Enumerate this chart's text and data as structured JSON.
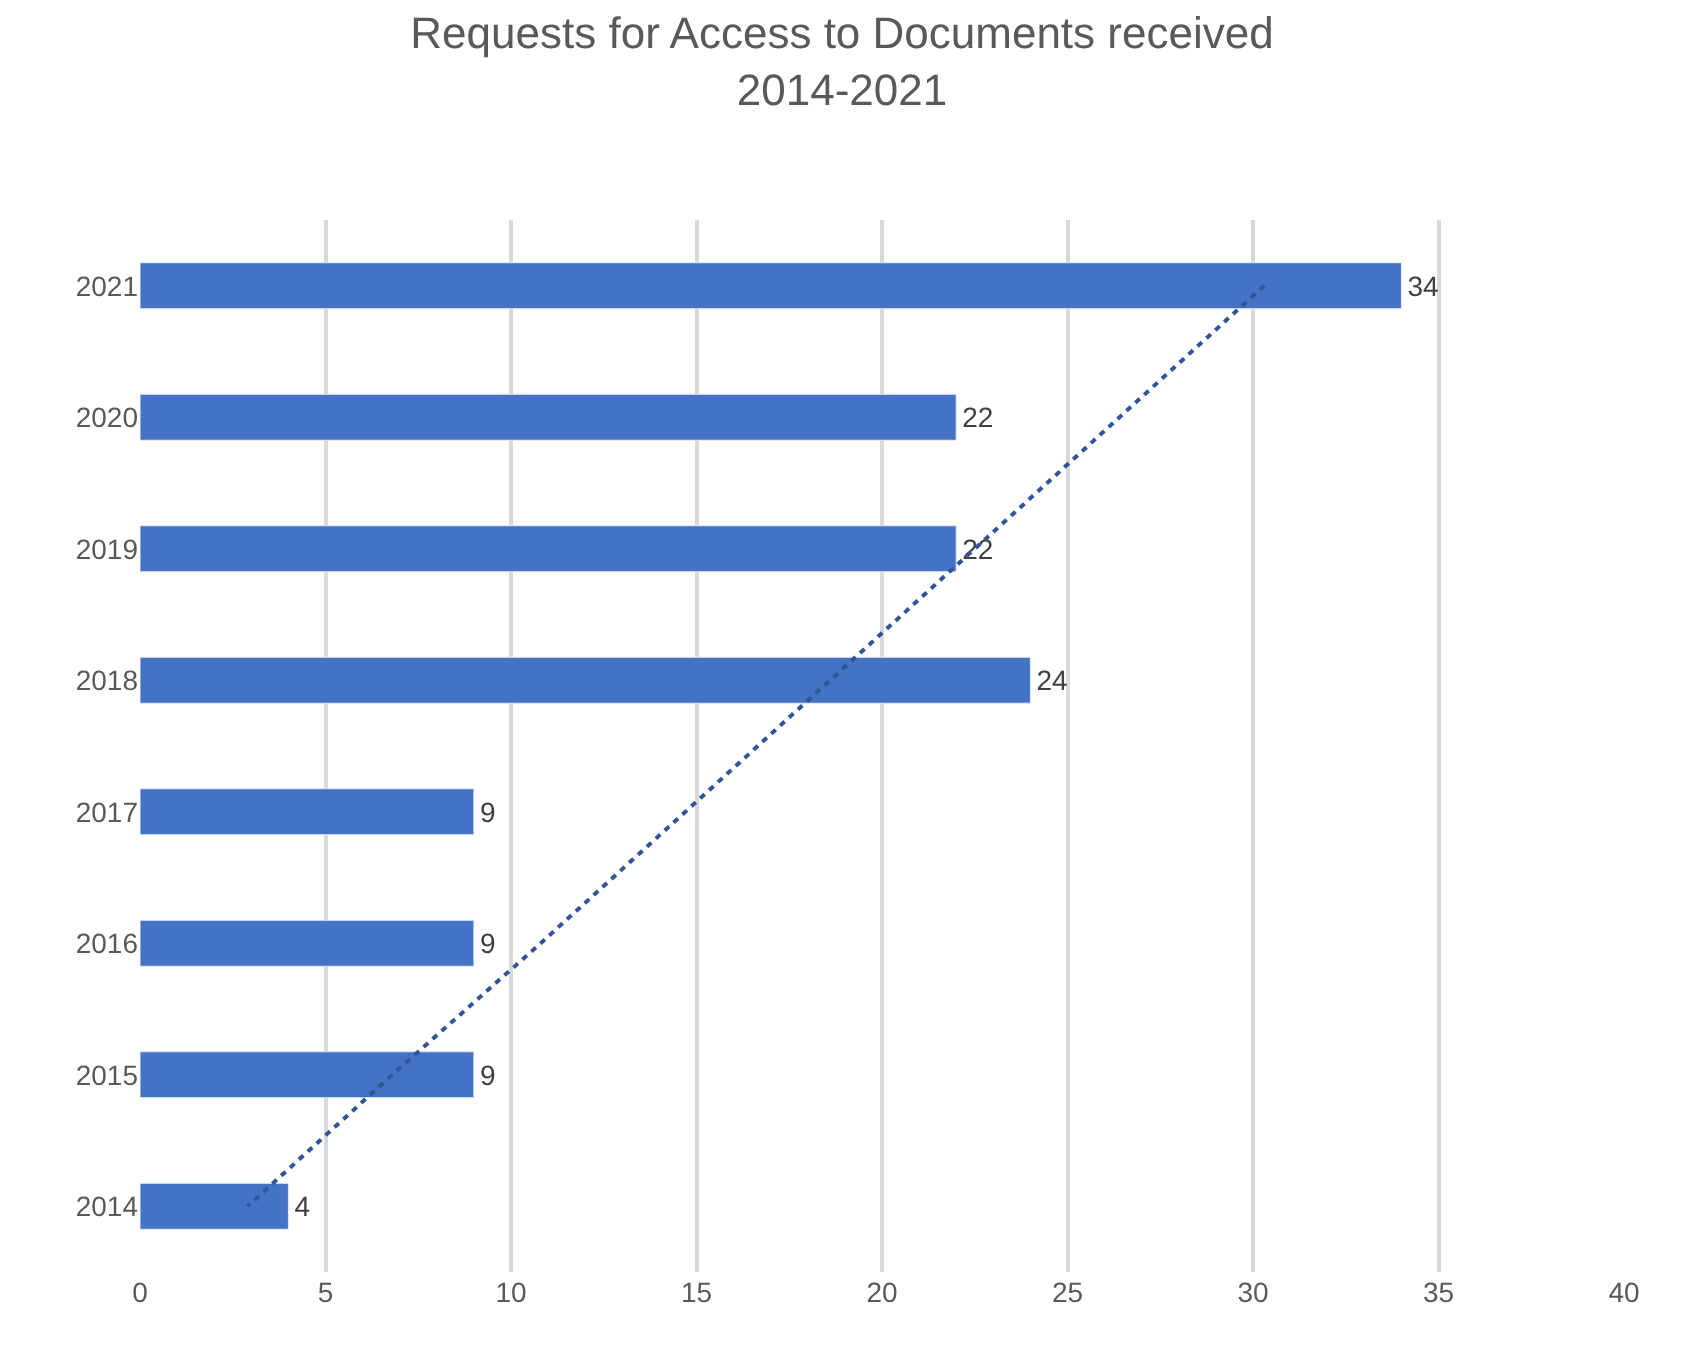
{
  "chart_data": {
    "type": "bar",
    "orientation": "horizontal",
    "title": "Requests for Access to Documents received\n2014-2021",
    "categories": [
      "2021",
      "2020",
      "2019",
      "2018",
      "2017",
      "2016",
      "2015",
      "2014"
    ],
    "series": [
      {
        "color": "#4472c4",
        "values": [
          34,
          22,
          22,
          24,
          9,
          9,
          9,
          4
        ],
        "value_labels": [
          "34",
          "22",
          "22",
          "24",
          "9",
          "9",
          "9",
          "4"
        ]
      },
      {
        "type": "line",
        "color": "#2f5597",
        "line_style": "dotted",
        "marker": "none",
        "values": [
          30.3,
          26.4,
          22.5,
          18.6,
          14.7,
          10.8,
          6.8,
          2.9
        ]
      }
    ],
    "xlim": [
      0,
      40
    ],
    "xticks": [
      0,
      5,
      10,
      15,
      20,
      25,
      30,
      35,
      40
    ],
    "grid": "x",
    "legend": false
  }
}
